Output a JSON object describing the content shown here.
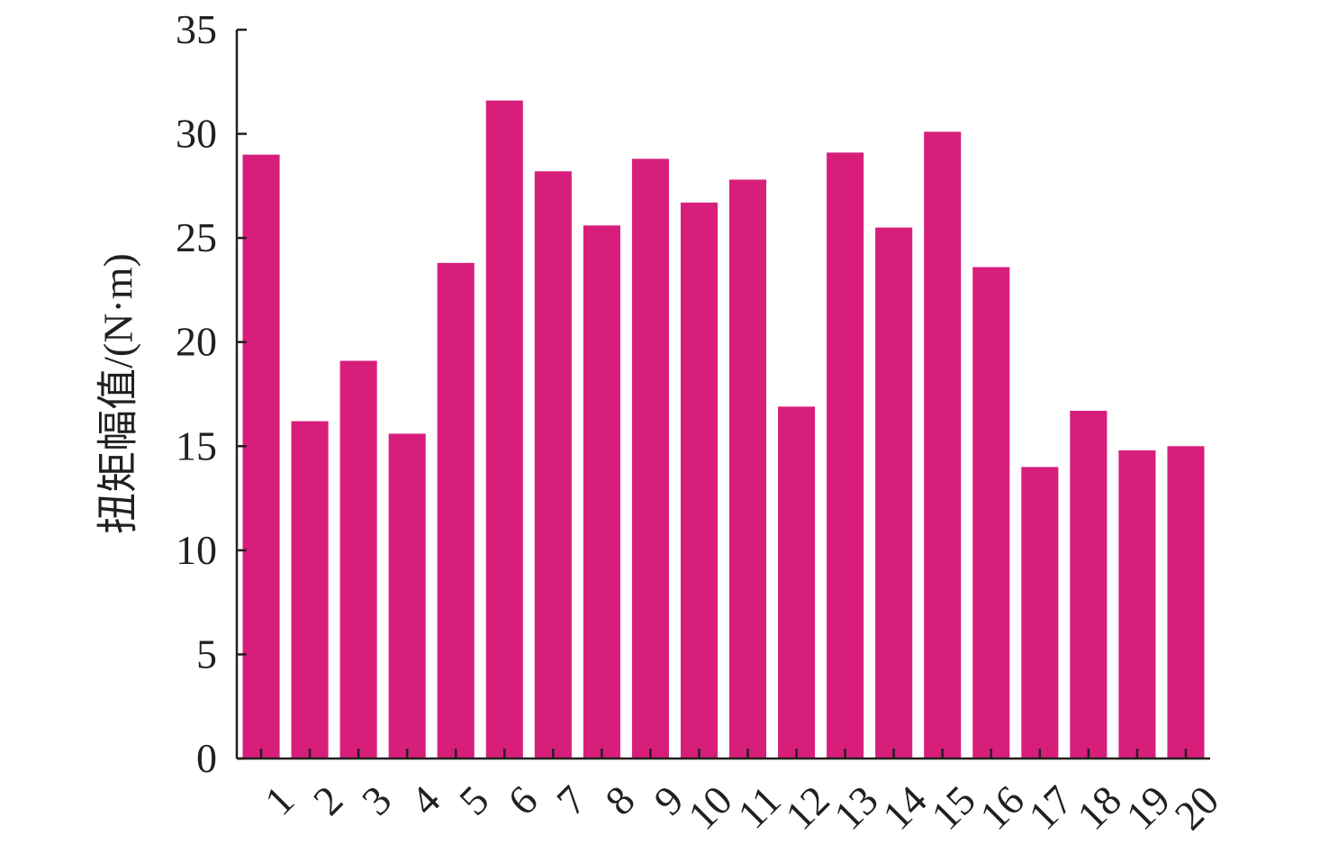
{
  "chart_data": {
    "type": "bar",
    "title": "",
    "xlabel": "",
    "ylabel": "扭矩幅值/(N·m)",
    "categories": [
      "1",
      "2",
      "3",
      "4",
      "5",
      "6",
      "7",
      "8",
      "9",
      "10",
      "11",
      "12",
      "13",
      "14",
      "15",
      "16",
      "17",
      "18",
      "19",
      "20"
    ],
    "values": [
      29.0,
      16.2,
      19.1,
      15.6,
      23.8,
      31.6,
      28.2,
      25.6,
      28.8,
      26.7,
      27.8,
      16.9,
      29.1,
      25.5,
      30.1,
      23.6,
      14.0,
      16.7,
      14.8,
      15.0
    ],
    "ylim": [
      0,
      35
    ],
    "yticks": [
      0,
      5,
      10,
      15,
      20,
      25,
      30,
      35
    ],
    "grid": false,
    "legend": "none",
    "bar_color": "#d81e7b",
    "axis_color": "#231f20"
  }
}
